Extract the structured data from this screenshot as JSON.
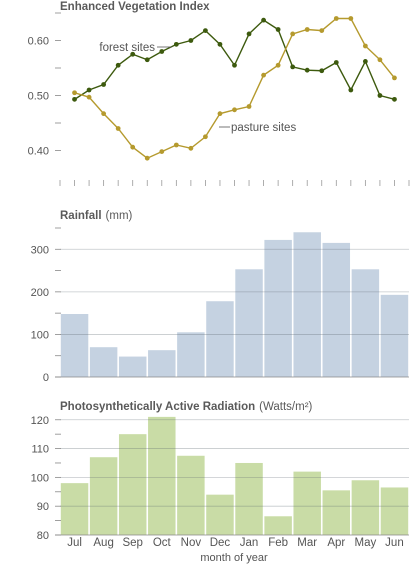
{
  "months": [
    "Jul",
    "Aug",
    "Sep",
    "Oct",
    "Nov",
    "Dec",
    "Jan",
    "Feb",
    "Mar",
    "Apr",
    "May",
    "Jun"
  ],
  "xlabel": "month of year",
  "chart_data": [
    {
      "type": "line",
      "title": "Enhanced Vegetation Index",
      "ylim": [
        0.35,
        0.65
      ],
      "yticks": [
        "0.40",
        "0.50",
        "0.60"
      ],
      "grid": false,
      "series": [
        {
          "name": "forest sites",
          "color": "#3d5a0e",
          "x": [
            0.0,
            0.5,
            1.0,
            1.5,
            2.0,
            2.5,
            3.0,
            3.5,
            4.0,
            4.5,
            5.0,
            5.5,
            6.0,
            6.5,
            7.0,
            7.5,
            8.0,
            8.5,
            9.0,
            9.5,
            10.0,
            10.5,
            11.0,
            11.5
          ],
          "values": [
            0.493,
            0.51,
            0.52,
            0.555,
            0.575,
            0.565,
            0.58,
            0.593,
            0.6,
            0.618,
            0.593,
            0.555,
            0.612,
            0.637,
            0.62,
            0.552,
            0.546,
            0.545,
            0.56,
            0.51,
            0.562,
            0.5,
            0.493,
            null
          ]
        },
        {
          "name": "pasture sites",
          "color": "#b59a2e",
          "x": [
            0.0,
            0.5,
            1.0,
            1.5,
            2.0,
            2.5,
            3.0,
            3.5,
            4.0,
            4.5,
            5.0,
            5.5,
            6.0,
            6.5,
            7.0,
            7.5,
            8.0,
            8.5,
            9.0,
            9.5,
            10.0,
            10.5,
            11.0,
            11.5
          ],
          "values": [
            0.505,
            0.497,
            0.467,
            0.44,
            0.406,
            0.386,
            0.398,
            0.41,
            0.404,
            0.425,
            0.467,
            0.474,
            0.48,
            0.537,
            0.555,
            0.612,
            0.62,
            0.618,
            0.64,
            0.64,
            0.59,
            0.565,
            0.532,
            null
          ]
        }
      ]
    },
    {
      "type": "bar",
      "title": "Rainfall",
      "unit": "(mm)",
      "ylim": [
        0,
        350
      ],
      "yticks": [
        "0",
        "100",
        "200",
        "300"
      ],
      "grid": true,
      "color": "#c5d2e1",
      "categories": [
        "Jul",
        "Aug",
        "Sep",
        "Oct",
        "Nov",
        "Dec",
        "Jan",
        "Feb",
        "Mar",
        "Apr",
        "May",
        "Jun"
      ],
      "values": [
        148,
        70,
        48,
        63,
        105,
        178,
        253,
        322,
        340,
        315,
        253,
        193
      ]
    },
    {
      "type": "bar",
      "title": "Photosynthetically Active Radiation",
      "unit": "(Watts/m²)",
      "ylim": [
        80,
        122
      ],
      "yticks": [
        "80",
        "90",
        "100",
        "110",
        "120"
      ],
      "grid": true,
      "color": "#c9dca6",
      "categories": [
        "Jul",
        "Aug",
        "Sep",
        "Oct",
        "Nov",
        "Dec",
        "Jan",
        "Feb",
        "Mar",
        "Apr",
        "May",
        "Jun"
      ],
      "values": [
        98,
        107,
        115,
        121,
        107.5,
        94,
        105,
        86.5,
        102,
        95.5,
        99,
        96.5
      ]
    }
  ]
}
